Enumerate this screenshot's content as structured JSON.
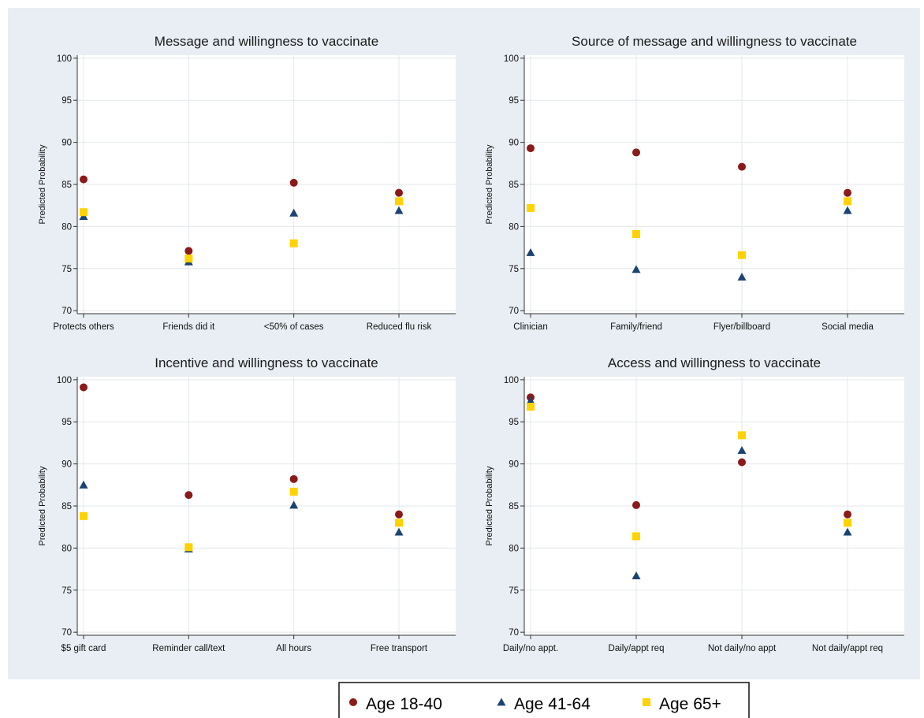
{
  "colors": {
    "outer_background": "#e8eef3",
    "plot_background": "#ffffff",
    "grid": "#e3e8ee",
    "axis": "#333333",
    "series": [
      "#8b1a1a",
      "#1c4370",
      "#ffd200"
    ]
  },
  "legend": {
    "placement": "bottom-center",
    "entries": [
      {
        "label": "Age 18-40",
        "marker": "circle"
      },
      {
        "label": "Age 41-64",
        "marker": "triangle"
      },
      {
        "label": "Age 65+",
        "marker": "square"
      }
    ]
  },
  "chart_data": [
    {
      "type": "scatter",
      "title": "Message and willingness to vaccinate",
      "ylabel": "Predicted Probability",
      "xlabel": "",
      "categories": [
        "Protects others",
        "Friends did it",
        "<50% of cases",
        "Reduced flu risk"
      ],
      "ylim": [
        70,
        100
      ],
      "yticks": [
        70,
        75,
        80,
        85,
        90,
        95,
        100
      ],
      "grid": true,
      "series": [
        {
          "name": "Age 18-40",
          "marker": "circle",
          "values": [
            85.6,
            77.1,
            85.2,
            84.0
          ]
        },
        {
          "name": "Age 41-64",
          "marker": "triangle",
          "values": [
            81.2,
            75.8,
            81.6,
            81.9
          ]
        },
        {
          "name": "Age 65+",
          "marker": "square",
          "values": [
            81.7,
            76.2,
            78.0,
            83.0
          ]
        }
      ]
    },
    {
      "type": "scatter",
      "title": "Source of message and willingness to vaccinate",
      "ylabel": "Predicted Probability",
      "xlabel": "",
      "categories": [
        "Clinician",
        "Family/friend",
        "Flyer/billboard",
        "Social media"
      ],
      "ylim": [
        70,
        100
      ],
      "yticks": [
        70,
        75,
        80,
        85,
        90,
        95,
        100
      ],
      "grid": true,
      "series": [
        {
          "name": "Age 18-40",
          "marker": "circle",
          "values": [
            89.3,
            88.8,
            87.1,
            84.0
          ]
        },
        {
          "name": "Age 41-64",
          "marker": "triangle",
          "values": [
            76.9,
            74.9,
            74.0,
            81.9
          ]
        },
        {
          "name": "Age 65+",
          "marker": "square",
          "values": [
            82.2,
            79.1,
            76.6,
            83.0
          ]
        }
      ]
    },
    {
      "type": "scatter",
      "title": "Incentive and willingness to vaccinate",
      "ylabel": "Predicted Probability",
      "xlabel": "",
      "categories": [
        "$5 gift card",
        "Reminder call/text",
        "All hours",
        "Free transport"
      ],
      "ylim": [
        70,
        100
      ],
      "yticks": [
        70,
        75,
        80,
        85,
        90,
        95,
        100
      ],
      "grid": true,
      "series": [
        {
          "name": "Age 18-40",
          "marker": "circle",
          "values": [
            99.1,
            86.3,
            88.2,
            84.0
          ]
        },
        {
          "name": "Age 41-64",
          "marker": "triangle",
          "values": [
            87.5,
            79.9,
            85.1,
            81.9
          ]
        },
        {
          "name": "Age 65+",
          "marker": "square",
          "values": [
            83.8,
            80.1,
            86.7,
            83.0
          ]
        }
      ]
    },
    {
      "type": "scatter",
      "title": "Access and willingness to vaccinate",
      "ylabel": "Predicted Probability",
      "xlabel": "",
      "categories": [
        "Daily/no appt.",
        "Daily/appt req",
        "Not daily/no appt",
        "Not daily/appt req"
      ],
      "ylim": [
        70,
        100
      ],
      "yticks": [
        70,
        75,
        80,
        85,
        90,
        95,
        100
      ],
      "grid": true,
      "series": [
        {
          "name": "Age 18-40",
          "marker": "circle",
          "values": [
            97.9,
            85.1,
            90.2,
            84.0
          ]
        },
        {
          "name": "Age 41-64",
          "marker": "triangle",
          "values": [
            97.5,
            76.7,
            91.6,
            81.9
          ]
        },
        {
          "name": "Age 65+",
          "marker": "square",
          "values": [
            96.8,
            81.4,
            93.4,
            83.0
          ]
        }
      ]
    }
  ]
}
